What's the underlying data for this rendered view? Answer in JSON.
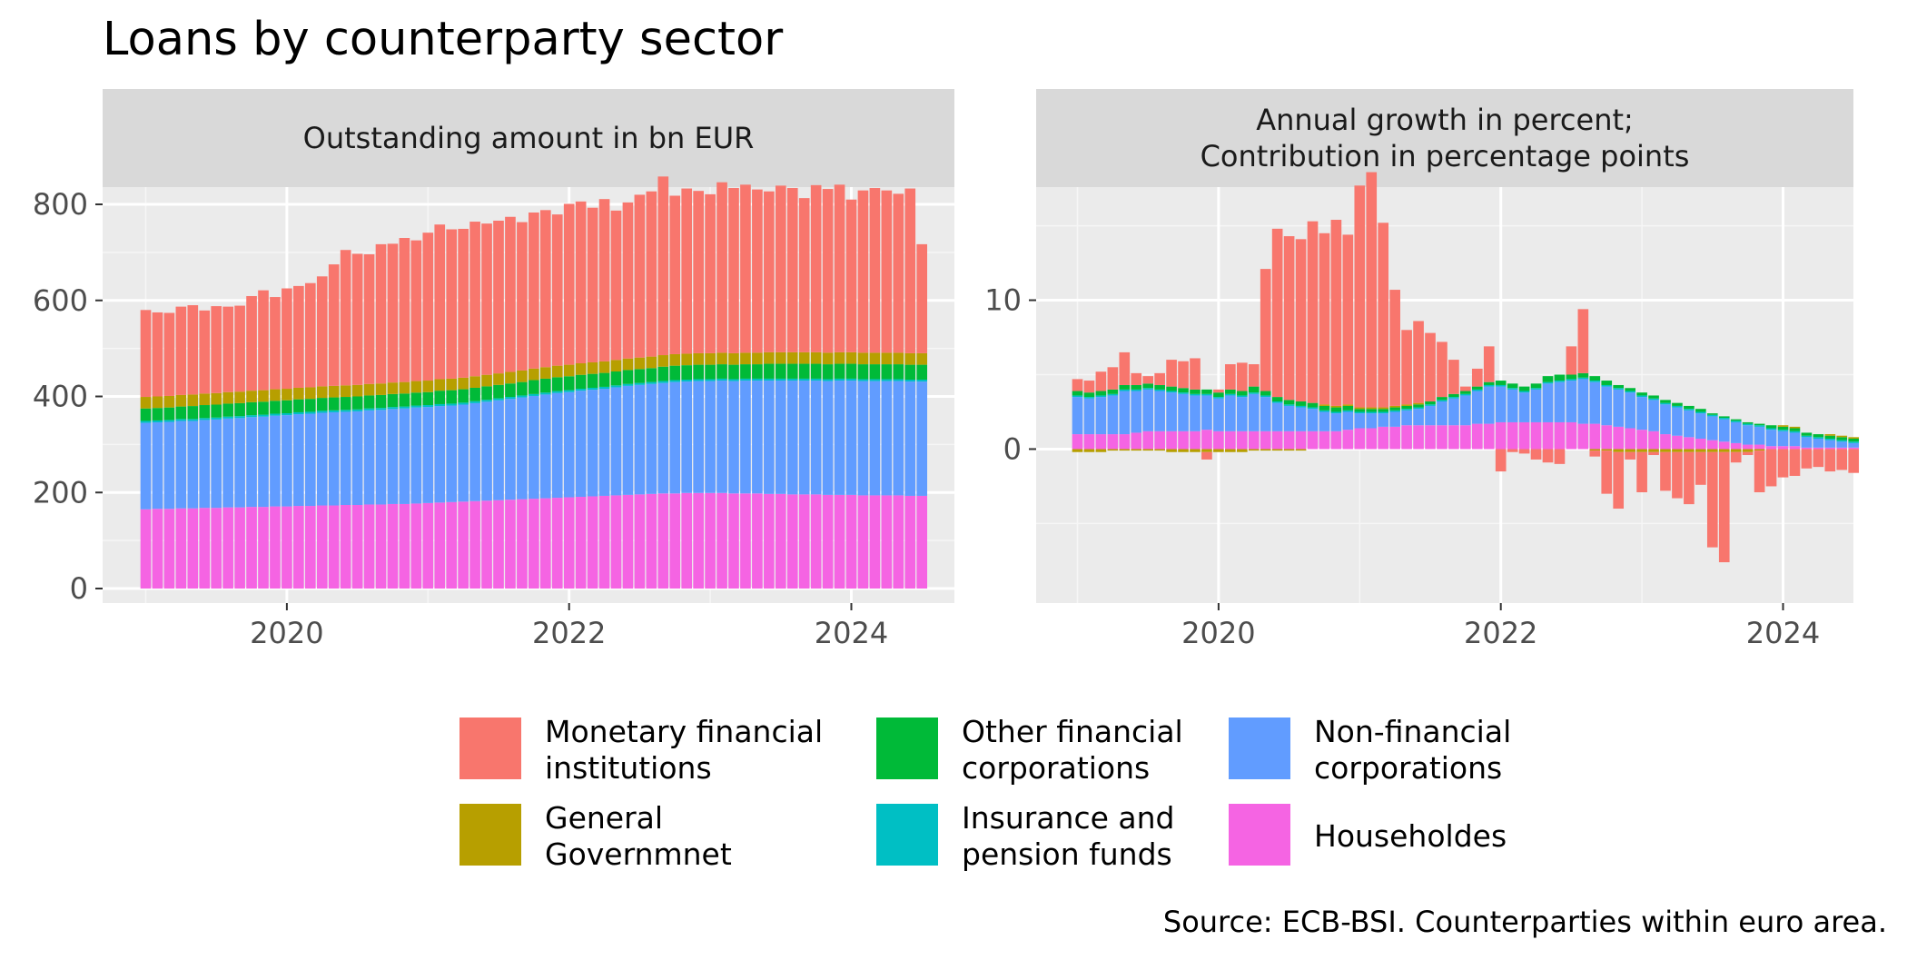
{
  "title": "Loans by counterparty sector",
  "caption": "Source: ECB-BSI. Counterparties within euro area.",
  "legend": {
    "entries": [
      {
        "key": "mfi",
        "lines": [
          "Monetary financial",
          "institutions"
        ],
        "color": "#F8766D"
      },
      {
        "key": "gg",
        "lines": [
          "General",
          "Governmnet"
        ],
        "color": "#B79F00"
      },
      {
        "key": "ofc",
        "lines": [
          "Other financial",
          "corporations"
        ],
        "color": "#00BA38"
      },
      {
        "key": "icpf",
        "lines": [
          "Insurance and",
          "pension funds"
        ],
        "color": "#00BFC4"
      },
      {
        "key": "nfc",
        "lines": [
          "Non-financial",
          "corporations"
        ],
        "color": "#619CFF"
      },
      {
        "key": "hh",
        "lines": [
          "Householdes"
        ],
        "color": "#F564E3"
      }
    ]
  },
  "chart_data": [
    {
      "type": "bar",
      "stacked": true,
      "panel_title": [
        "Outstanding amount in bn EUR"
      ],
      "x_start": "2019-01",
      "frequency": "monthly",
      "x_ticks": [
        "2020",
        "2022",
        "2024"
      ],
      "y_ticks": [
        0,
        200,
        400,
        600,
        800
      ],
      "ylim": [
        0,
        800
      ],
      "grid": true,
      "series": [
        {
          "key": "hh",
          "values": [
            165,
            166,
            166,
            167,
            167,
            168,
            168,
            169,
            169,
            170,
            170,
            171,
            171,
            172,
            172,
            173,
            173,
            174,
            174,
            175,
            175,
            176,
            176,
            177,
            178,
            179,
            180,
            181,
            182,
            183,
            184,
            185,
            186,
            187,
            188,
            189,
            190,
            191,
            192,
            193,
            194,
            195,
            196,
            197,
            198,
            198,
            199,
            199,
            199,
            199,
            198,
            198,
            198,
            197,
            197,
            196,
            196,
            196,
            195,
            195,
            195,
            194,
            194,
            194,
            194,
            193,
            193
          ]
        },
        {
          "key": "nfc",
          "values": [
            180,
            180,
            181,
            182,
            182,
            183,
            184,
            185,
            186,
            187,
            188,
            189,
            190,
            191,
            192,
            193,
            194,
            194,
            195,
            196,
            197,
            198,
            199,
            200,
            200,
            201,
            201,
            202,
            204,
            206,
            208,
            210,
            212,
            214,
            216,
            218,
            219,
            221,
            222,
            223,
            225,
            227,
            228,
            229,
            230,
            232,
            232,
            233,
            233,
            234,
            234,
            235,
            235,
            236,
            236,
            237,
            237,
            237,
            237,
            238,
            238,
            238,
            238,
            238,
            238,
            238,
            238
          ]
        },
        {
          "key": "icpf",
          "values": [
            4,
            4,
            4,
            4,
            4,
            4,
            4,
            4,
            4,
            4,
            4,
            4,
            4,
            4,
            4,
            4,
            4,
            4,
            4,
            4,
            4,
            4,
            4,
            4,
            4,
            4,
            4,
            4,
            4,
            4,
            4,
            4,
            4,
            4,
            4,
            4,
            4,
            4,
            4,
            4,
            4,
            4,
            4,
            4,
            4,
            4,
            4,
            4,
            4,
            4,
            4,
            4,
            4,
            4,
            4,
            4,
            4,
            4,
            4,
            4,
            4,
            4,
            4,
            4,
            4,
            4,
            4
          ]
        },
        {
          "key": "ofc",
          "values": [
            26,
            26,
            26,
            26,
            27,
            27,
            27,
            27,
            27,
            27,
            27,
            27,
            27,
            27,
            27,
            27,
            27,
            27,
            27,
            27,
            27,
            27,
            27,
            27,
            27,
            28,
            28,
            28,
            28,
            28,
            28,
            28,
            28,
            29,
            29,
            29,
            29,
            29,
            29,
            29,
            29,
            29,
            29,
            29,
            30,
            30,
            30,
            30,
            30,
            30,
            30,
            30,
            30,
            31,
            31,
            31,
            31,
            31,
            31,
            31,
            31,
            31,
            31,
            31,
            31,
            31,
            31
          ]
        },
        {
          "key": "gg",
          "values": [
            24,
            24,
            24,
            24,
            24,
            24,
            24,
            24,
            24,
            24,
            24,
            24,
            24,
            24,
            24,
            24,
            24,
            24,
            24,
            24,
            24,
            24,
            24,
            24,
            24,
            24,
            24,
            24,
            24,
            24,
            24,
            24,
            24,
            24,
            24,
            24,
            24,
            24,
            24,
            24,
            24,
            24,
            24,
            24,
            24,
            24,
            24,
            24,
            24,
            24,
            24,
            24,
            24,
            24,
            24,
            24,
            24,
            24,
            24,
            24,
            24,
            24,
            24,
            24,
            24,
            24,
            24
          ]
        },
        {
          "key": "mfi",
          "values": [
            181,
            175,
            173,
            184,
            186,
            173,
            181,
            178,
            179,
            197,
            208,
            192,
            209,
            212,
            217,
            229,
            253,
            282,
            273,
            270,
            290,
            289,
            300,
            293,
            308,
            322,
            311,
            310,
            322,
            315,
            318,
            323,
            309,
            325,
            327,
            315,
            335,
            337,
            322,
            338,
            311,
            325,
            339,
            344,
            372,
            330,
            344,
            338,
            331,
            355,
            344,
            350,
            340,
            335,
            347,
            342,
            321,
            348,
            341,
            349,
            318,
            338,
            343,
            338,
            331,
            343,
            227
          ]
        }
      ]
    },
    {
      "type": "bar",
      "stacked": true,
      "panel_title": [
        "Annual growth in percent;",
        "Contribution in percentage points"
      ],
      "x_start": "2019-01",
      "frequency": "monthly",
      "x_ticks": [
        "2020",
        "2022",
        "2024"
      ],
      "y_ticks": [
        0,
        10
      ],
      "ylim": [
        -9,
        19
      ],
      "grid": true,
      "series": [
        {
          "key": "hh",
          "values": [
            1.0,
            1.0,
            1.0,
            1.0,
            1.0,
            1.1,
            1.2,
            1.2,
            1.2,
            1.2,
            1.2,
            1.3,
            1.2,
            1.2,
            1.2,
            1.2,
            1.2,
            1.2,
            1.2,
            1.2,
            1.2,
            1.2,
            1.2,
            1.3,
            1.4,
            1.4,
            1.5,
            1.5,
            1.6,
            1.6,
            1.6,
            1.6,
            1.6,
            1.6,
            1.7,
            1.7,
            1.8,
            1.8,
            1.8,
            1.8,
            1.8,
            1.8,
            1.8,
            1.7,
            1.7,
            1.6,
            1.5,
            1.4,
            1.3,
            1.2,
            1.0,
            0.9,
            0.8,
            0.7,
            0.6,
            0.5,
            0.4,
            0.3,
            0.3,
            0.2,
            0.2,
            0.2,
            0.1,
            0.1,
            0.1,
            0.1,
            0.1
          ]
        },
        {
          "key": "nfc",
          "values": [
            2.5,
            2.4,
            2.5,
            2.6,
            2.9,
            2.8,
            2.8,
            2.7,
            2.6,
            2.5,
            2.4,
            2.3,
            2.2,
            2.4,
            2.3,
            2.5,
            2.3,
            1.9,
            1.7,
            1.6,
            1.5,
            1.3,
            1.2,
            1.2,
            1.0,
            1.0,
            0.9,
            1.0,
            1.0,
            1.1,
            1.3,
            1.6,
            1.8,
            2.0,
            2.2,
            2.5,
            2.4,
            2.2,
            2.0,
            2.2,
            2.6,
            2.7,
            2.8,
            3.0,
            2.8,
            2.6,
            2.5,
            2.4,
            2.2,
            2.1,
            2.0,
            1.9,
            1.8,
            1.7,
            1.6,
            1.5,
            1.4,
            1.3,
            1.2,
            1.1,
            1.0,
            0.9,
            0.7,
            0.6,
            0.5,
            0.4,
            0.3
          ]
        },
        {
          "key": "icpf",
          "values": [
            0.1,
            0.1,
            0.1,
            0.1,
            0.1,
            0.1,
            0.1,
            0.1,
            0.1,
            0.1,
            0.1,
            0.1,
            0.1,
            0.1,
            0.1,
            0.1,
            0.1,
            0.1,
            0.1,
            0.1,
            0.1,
            0.1,
            0.1,
            0.1,
            0.1,
            0.1,
            0.1,
            0.1,
            0.1,
            0.1,
            0.1,
            0.1,
            0.1,
            0.1,
            0.1,
            0.1,
            0.1,
            0.1,
            0.1,
            0.1,
            0.1,
            0.1,
            0.1,
            0.1,
            0.1,
            0.1,
            0.1,
            0.1,
            0.1,
            0.1,
            0.1,
            0.1,
            0.1,
            0.1,
            0.1,
            0.1,
            0.1,
            0.1,
            0.1,
            0.1,
            0.1,
            0.1,
            0.1,
            0.1,
            0.1,
            0.1,
            0.1
          ]
        },
        {
          "key": "ofc",
          "values": [
            0.3,
            0.3,
            0.3,
            0.3,
            0.3,
            0.3,
            0.3,
            0.3,
            0.3,
            0.3,
            0.3,
            0.3,
            0.3,
            0.3,
            0.3,
            0.4,
            0.3,
            0.3,
            0.3,
            0.3,
            0.3,
            0.3,
            0.3,
            0.3,
            0.2,
            0.2,
            0.2,
            0.2,
            0.2,
            0.2,
            0.2,
            0.2,
            0.2,
            0.2,
            0.2,
            0.2,
            0.3,
            0.3,
            0.3,
            0.3,
            0.4,
            0.4,
            0.3,
            0.3,
            0.3,
            0.3,
            0.2,
            0.2,
            0.2,
            0.2,
            0.2,
            0.2,
            0.2,
            0.2,
            0.1,
            0.1,
            0.1,
            0.1,
            0.1,
            0.2,
            0.2,
            0.2,
            0.2,
            0.2,
            0.2,
            0.2,
            0.2
          ]
        },
        {
          "key": "gg",
          "values": [
            -0.2,
            -0.2,
            -0.2,
            -0.1,
            -0.1,
            -0.1,
            -0.1,
            -0.1,
            -0.2,
            -0.2,
            -0.2,
            -0.2,
            -0.2,
            -0.2,
            -0.2,
            -0.1,
            -0.1,
            -0.1,
            -0.1,
            -0.1,
            0.0,
            0.1,
            0.1,
            0.1,
            0.1,
            0.1,
            0.1,
            0.1,
            0.1,
            0.1,
            0.0,
            0.0,
            0.0,
            0.0,
            0.0,
            0.0,
            0.0,
            0.0,
            0.0,
            0.0,
            0.0,
            0.0,
            0.0,
            0.0,
            -0.1,
            -0.1,
            -0.2,
            -0.2,
            -0.2,
            -0.2,
            -0.2,
            -0.2,
            -0.2,
            -0.2,
            -0.2,
            -0.2,
            -0.2,
            -0.2,
            -0.1,
            0.0,
            0.1,
            0.1,
            0.0,
            0.0,
            0.1,
            0.1,
            0.1
          ]
        },
        {
          "key": "mfi",
          "values": [
            0.8,
            0.8,
            1.3,
            1.5,
            2.2,
            0.8,
            0.5,
            0.8,
            1.8,
            1.8,
            2.1,
            -0.5,
            0.2,
            1.7,
            1.9,
            1.5,
            8.2,
            11.3,
            11.0,
            10.9,
            12.2,
            11.5,
            12.5,
            11.4,
            14.9,
            15.8,
            12.4,
            7.8,
            5.0,
            5.5,
            4.6,
            3.7,
            2.3,
            0.3,
            1.2,
            2.4,
            -1.5,
            -0.2,
            -0.3,
            -0.7,
            -0.9,
            -1.0,
            1.9,
            4.3,
            -0.4,
            -2.9,
            -3.8,
            -0.5,
            -2.7,
            -0.2,
            -2.6,
            -3.1,
            -3.5,
            -2.2,
            -6.4,
            -7.4,
            -0.7,
            -0.2,
            -2.8,
            -2.5,
            -1.9,
            -1.8,
            -1.3,
            -1.2,
            -1.5,
            -1.4,
            -1.6
          ]
        }
      ]
    }
  ]
}
